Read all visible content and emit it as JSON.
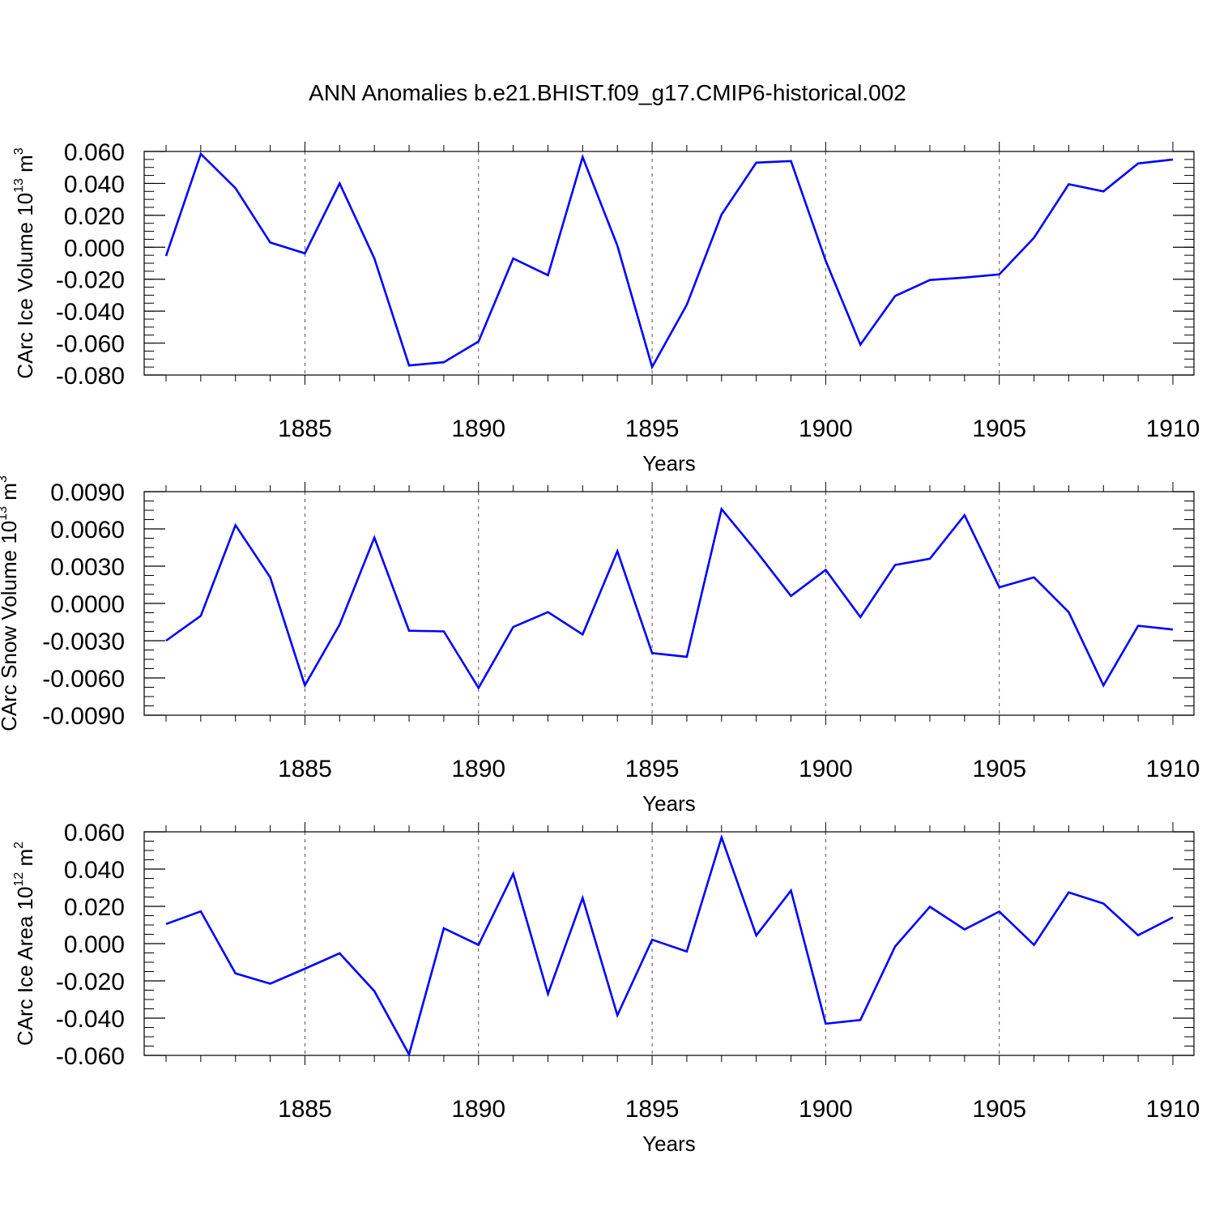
{
  "chart_data": {
    "type": "line",
    "title": "ANN Anomalies b.e21.BHIST.f09_g17.CMIP6-historical.002",
    "line_color": "#0000ff",
    "x": [
      1881,
      1882,
      1883,
      1884,
      1885,
      1886,
      1887,
      1888,
      1889,
      1890,
      1891,
      1892,
      1893,
      1894,
      1895,
      1896,
      1897,
      1898,
      1899,
      1900,
      1901,
      1902,
      1903,
      1904,
      1905,
      1906,
      1907,
      1908,
      1909,
      1910
    ],
    "xlim": [
      1881,
      1910
    ],
    "xticks": [
      "1885",
      "1890",
      "1895",
      "1900",
      "1905",
      "1910"
    ],
    "xlabel": "Years",
    "panels": [
      {
        "ylabel": "CArc Ice Volume 10",
        "ylabel_exp": "13",
        "ylabel_unit": "m",
        "ylabel_unit_exp": "3",
        "ylim": [
          -0.08,
          0.06
        ],
        "yticks": [
          "0.060",
          "0.040",
          "0.020",
          "0.000",
          "-0.020",
          "-0.040",
          "-0.060",
          "-0.080"
        ],
        "ytick_values": [
          0.06,
          0.04,
          0.02,
          0.0,
          -0.02,
          -0.04,
          -0.06,
          -0.08
        ],
        "minor_step": 0.005,
        "series": [
          {
            "name": "CArc Ice Volume",
            "values": [
              -0.0055,
              0.0585,
              0.037,
              0.003,
              -0.0038,
              0.04,
              -0.007,
              -0.074,
              -0.072,
              -0.059,
              -0.007,
              -0.0175,
              0.0565,
              0.001,
              -0.075,
              -0.036,
              0.0205,
              0.053,
              0.054,
              -0.0085,
              -0.061,
              -0.0305,
              -0.0205,
              -0.019,
              -0.017,
              0.006,
              0.0395,
              0.035,
              0.0525,
              0.055
            ]
          }
        ]
      },
      {
        "ylabel": "CArc Snow Volume 10",
        "ylabel_exp": "13",
        "ylabel_unit": "m",
        "ylabel_unit_exp": "3",
        "ylim": [
          -0.009,
          0.009
        ],
        "yticks": [
          "0.0090",
          "0.0060",
          "0.0030",
          "0.0000",
          "-0.0030",
          "-0.0060",
          "-0.0090"
        ],
        "ytick_values": [
          0.009,
          0.006,
          0.003,
          0.0,
          -0.003,
          -0.006,
          -0.009
        ],
        "minor_step": 0.00075,
        "series": [
          {
            "name": "CArc Snow Volume",
            "values": [
              -0.003,
              -0.001,
              0.0063,
              0.0021,
              -0.0066,
              -0.0017,
              0.0053,
              -0.0022,
              -0.00225,
              -0.0068,
              -0.0019,
              -0.0007,
              -0.0025,
              0.0042,
              -0.004,
              -0.0043,
              0.0076,
              0.0042,
              0.0006,
              0.0027,
              -0.0011,
              0.0031,
              0.0036,
              0.0071,
              0.0013,
              0.0021,
              -0.0007,
              -0.0066,
              -0.0018,
              -0.0021
            ]
          }
        ]
      },
      {
        "ylabel": "CArc Ice Area 10",
        "ylabel_exp": "12",
        "ylabel_unit": "m",
        "ylabel_unit_exp": "2",
        "ylim": [
          -0.06,
          0.06
        ],
        "yticks": [
          "0.060",
          "0.040",
          "0.020",
          "0.000",
          "-0.020",
          "-0.040",
          "-0.060"
        ],
        "ytick_values": [
          0.06,
          0.04,
          0.02,
          0.0,
          -0.02,
          -0.04,
          -0.06
        ],
        "minor_step": 0.005,
        "series": [
          {
            "name": "CArc Ice Area",
            "values": [
              0.0105,
              0.0173,
              -0.016,
              -0.0215,
              -0.0135,
              -0.0052,
              -0.0255,
              -0.0595,
              0.0082,
              -0.0007,
              0.0375,
              -0.027,
              0.0245,
              -0.0385,
              0.0021,
              -0.0042,
              0.057,
              0.0044,
              0.0285,
              -0.043,
              -0.041,
              -0.0015,
              0.0198,
              0.0076,
              0.0172,
              -0.0007,
              0.0275,
              0.0215,
              0.0045,
              0.0141
            ]
          }
        ]
      }
    ]
  }
}
